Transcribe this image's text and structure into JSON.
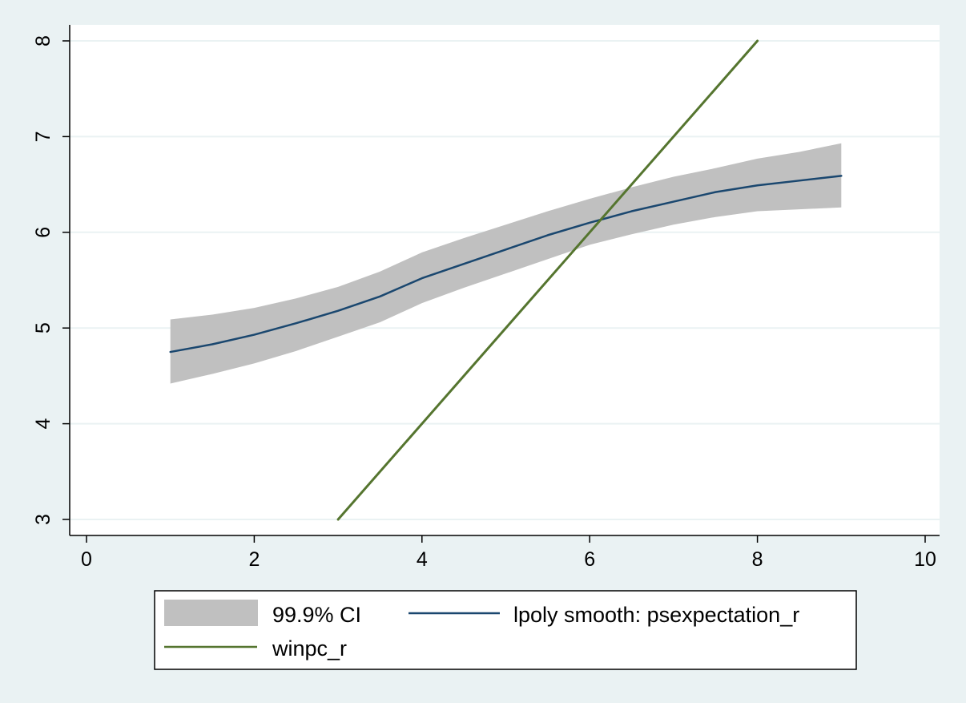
{
  "chart_data": {
    "type": "line",
    "title": "",
    "xlabel": "",
    "ylabel": "",
    "xlim": [
      0,
      10
    ],
    "ylim": [
      3,
      8
    ],
    "x_ticks": [
      0,
      2,
      4,
      6,
      8,
      10
    ],
    "y_ticks": [
      3,
      4,
      5,
      6,
      7,
      8
    ],
    "x_tick_labels": [
      "0",
      "2",
      "4",
      "6",
      "8",
      "10"
    ],
    "y_tick_labels": [
      "3",
      "4",
      "5",
      "6",
      "7",
      "8"
    ],
    "grid": true,
    "legend_position": "bottom",
    "ci_band": {
      "name": "99.9% CI",
      "color": "#c0c0c0",
      "x": [
        1.0,
        1.5,
        2.0,
        2.5,
        3.0,
        3.5,
        4.0,
        4.5,
        5.0,
        5.5,
        6.0,
        6.5,
        7.0,
        7.5,
        8.0,
        8.5,
        9.0
      ],
      "lower": [
        4.42,
        4.52,
        4.63,
        4.76,
        4.91,
        5.06,
        5.26,
        5.42,
        5.57,
        5.72,
        5.87,
        5.98,
        6.08,
        6.16,
        6.22,
        6.24,
        6.26
      ],
      "upper": [
        5.09,
        5.14,
        5.21,
        5.31,
        5.43,
        5.59,
        5.79,
        5.94,
        6.08,
        6.22,
        6.35,
        6.47,
        6.58,
        6.67,
        6.77,
        6.84,
        6.93
      ]
    },
    "series": [
      {
        "name": "lpoly smooth: psexpectation_r",
        "color": "#1a476f",
        "x": [
          1.0,
          1.5,
          2.0,
          2.5,
          3.0,
          3.5,
          4.0,
          4.5,
          5.0,
          5.5,
          6.0,
          6.5,
          7.0,
          7.5,
          8.0,
          8.5,
          9.0
        ],
        "y": [
          4.75,
          4.83,
          4.93,
          5.05,
          5.18,
          5.33,
          5.52,
          5.67,
          5.82,
          5.97,
          6.1,
          6.22,
          6.32,
          6.42,
          6.49,
          6.54,
          6.59
        ]
      },
      {
        "name": "winpc_r",
        "color": "#55752f",
        "x": [
          3,
          8
        ],
        "y": [
          3,
          8
        ]
      }
    ],
    "legend": [
      {
        "label": "99.9% CI",
        "kind": "band"
      },
      {
        "label": "lpoly smooth: psexpectation_r",
        "kind": "line",
        "color": "#1a476f"
      },
      {
        "label": "winpc_r",
        "kind": "line",
        "color": "#55752f"
      }
    ]
  }
}
